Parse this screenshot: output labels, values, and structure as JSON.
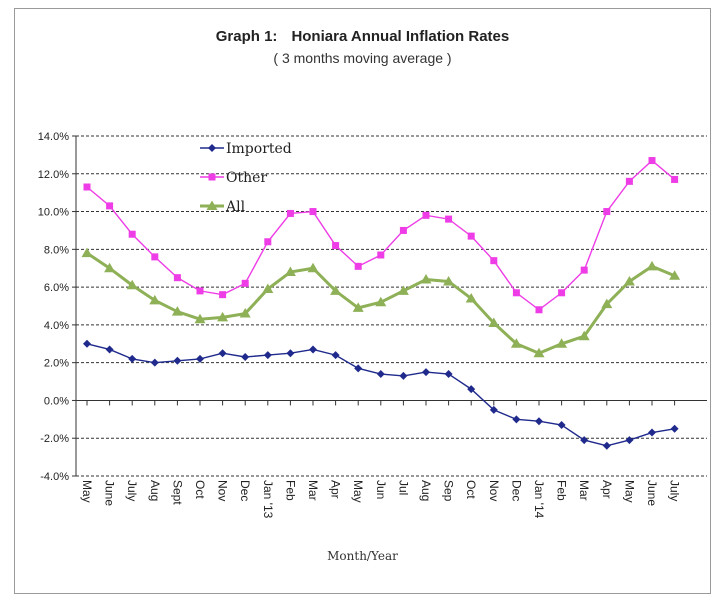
{
  "chart_data": {
    "type": "line",
    "title_prefix": "Graph 1:",
    "title": "Honiara Annual Inflation Rates",
    "subtitle": "( 3 months moving average )",
    "xlabel": "Month/Year",
    "ylabel": "",
    "ylim": [
      -4,
      14
    ],
    "yticks": [
      "-4.0%",
      "-2.0%",
      "0.0%",
      "2.0%",
      "4.0%",
      "6.0%",
      "8.0%",
      "10.0%",
      "12.0%",
      "14.0%"
    ],
    "grid": "horizontal dashed",
    "legend_position": "top-left",
    "categories": [
      "May",
      "June",
      "July",
      "Aug",
      "Sept",
      "Oct",
      "Nov",
      "Dec",
      "Jan '13",
      "Feb",
      "Mar",
      "Apr",
      "May",
      "Jun",
      "Jul",
      "Aug",
      "Sep",
      "Oct",
      "Nov",
      "Dec",
      "Jan '14",
      "Feb",
      "Mar",
      "Apr",
      "May",
      "June",
      "July"
    ],
    "series": [
      {
        "name": "Imported",
        "color": "#1f2a8c",
        "marker": "diamond",
        "values": [
          3.0,
          2.7,
          2.2,
          2.0,
          2.1,
          2.2,
          2.5,
          2.3,
          2.4,
          2.5,
          2.7,
          2.4,
          1.7,
          1.4,
          1.3,
          1.5,
          1.4,
          0.6,
          -0.5,
          -1.0,
          -1.1,
          -1.3,
          -2.1,
          -2.4,
          -2.1,
          -1.7,
          -1.5
        ]
      },
      {
        "name": "Other",
        "color": "#ee3ce6",
        "marker": "square",
        "values": [
          11.3,
          10.3,
          8.8,
          7.6,
          6.5,
          5.8,
          5.6,
          6.2,
          8.4,
          9.9,
          10.0,
          8.2,
          7.1,
          7.7,
          9.0,
          9.8,
          9.6,
          8.7,
          7.4,
          5.7,
          4.8,
          5.7,
          6.9,
          10.0,
          11.6,
          12.7,
          11.7
        ]
      },
      {
        "name": "All",
        "color": "#8eb056",
        "marker": "triangle",
        "values": [
          7.8,
          7.0,
          6.1,
          5.3,
          4.7,
          4.3,
          4.4,
          4.6,
          5.9,
          6.8,
          7.0,
          5.8,
          4.9,
          5.2,
          5.8,
          6.4,
          6.3,
          5.4,
          4.1,
          3.0,
          2.5,
          3.0,
          3.4,
          5.1,
          6.3,
          7.1,
          6.6
        ]
      }
    ]
  }
}
